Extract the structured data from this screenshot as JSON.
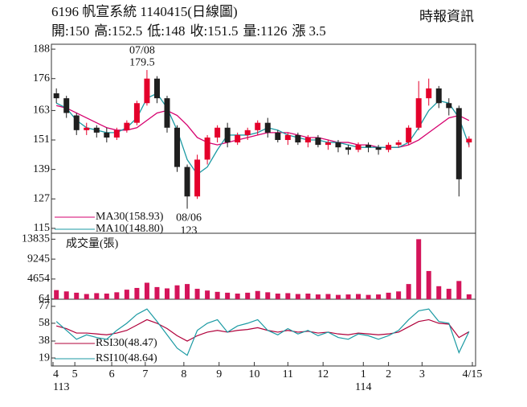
{
  "chart_data": [
    {
      "type": "candlestick",
      "title": "6196  帆宣系統 1140415(日線圖)",
      "source": "時報資訊",
      "stats": [
        {
          "label": "開:",
          "value": 150
        },
        {
          "label": "高:",
          "value": 152.5
        },
        {
          "label": "低:",
          "value": 148
        },
        {
          "label": "收:",
          "value": 151.5
        },
        {
          "label": "量:",
          "value": 1126
        },
        {
          "label": "漲",
          "value": 3.5
        }
      ],
      "x": [
        2,
        8,
        14,
        20,
        26,
        32,
        38,
        44,
        50,
        56,
        62,
        68,
        74,
        80,
        86,
        92,
        98,
        104,
        110,
        116,
        122,
        128,
        134,
        140,
        146,
        152,
        158,
        164,
        170,
        176,
        182,
        188,
        194,
        200,
        206,
        212,
        218,
        224,
        230,
        236,
        242,
        248
      ],
      "open": [
        170,
        168,
        161,
        155,
        156,
        154,
        152,
        155,
        158,
        166,
        176,
        168,
        156,
        140,
        128,
        143,
        152,
        156,
        150,
        153,
        155,
        158,
        154,
        151,
        153,
        150,
        152,
        149,
        150,
        148,
        147,
        149,
        148,
        147,
        149,
        150,
        156,
        168,
        172,
        166,
        164,
        150
      ],
      "high": [
        172,
        169,
        162,
        158,
        157,
        156,
        156,
        159,
        167,
        179.5,
        177,
        169,
        157,
        141,
        145,
        153,
        157,
        158,
        154,
        156,
        159,
        160,
        155,
        154,
        154,
        153,
        153,
        151,
        151,
        149,
        150,
        150,
        149,
        150,
        151,
        157,
        175,
        176,
        173,
        168,
        165,
        152.5
      ],
      "low": [
        166,
        160,
        153,
        153,
        152,
        150,
        151,
        154,
        157,
        165,
        166,
        154,
        138,
        123,
        127,
        141,
        150,
        148,
        149,
        151,
        153,
        152,
        150,
        149,
        149,
        148,
        148,
        147,
        146,
        145,
        146,
        146,
        145,
        146,
        148,
        149,
        155,
        165,
        164,
        161,
        128,
        148
      ],
      "close": [
        168,
        162,
        155,
        156,
        154,
        152,
        155,
        158,
        166,
        176,
        168,
        156,
        140,
        128,
        143,
        152,
        156,
        150,
        153,
        155,
        158,
        154,
        151,
        153,
        150,
        152,
        149,
        150,
        148,
        147,
        149,
        148,
        147,
        149,
        150,
        156,
        168,
        172,
        166,
        164,
        135,
        151.5
      ],
      "up_color": "#e4002b",
      "down_color": "#1f1f1f",
      "series": [
        {
          "name": "MA30(158.93)",
          "color": "#d6006e",
          "values": [
            165,
            164,
            162,
            160,
            158,
            156,
            155,
            155,
            156,
            159,
            162,
            163,
            161,
            157,
            152,
            150,
            149,
            150,
            151,
            152,
            153,
            154,
            154,
            154,
            153,
            152,
            152,
            151,
            150,
            150,
            149,
            149,
            148,
            148,
            148,
            149,
            151,
            154,
            157,
            160,
            161,
            158.93
          ]
        },
        {
          "name": "MA10(148.80)",
          "color": "#1b9aa3",
          "values": [
            166,
            164,
            159,
            156,
            155,
            154,
            154,
            156,
            160,
            168,
            170,
            164,
            155,
            143,
            137,
            140,
            147,
            153,
            153,
            153,
            154,
            156,
            155,
            153,
            152,
            151,
            151,
            150,
            150,
            149,
            148,
            148,
            148,
            148,
            148,
            150,
            156,
            163,
            167,
            166,
            160,
            148.8
          ]
        }
      ],
      "annotations": [
        {
          "date": "07/08",
          "value": 179.5
        },
        {
          "date": "08/06",
          "value": 123
        }
      ],
      "ylim": [
        113,
        190
      ],
      "yticks": [
        115,
        127,
        139,
        151,
        163,
        176,
        188
      ],
      "xlim": [
        0,
        250
      ],
      "xticks": [
        {
          "value": 0,
          "label": "4"
        },
        {
          "value": 13,
          "label": "5"
        },
        {
          "value": 35,
          "label": "6"
        },
        {
          "value": 55,
          "label": "7"
        },
        {
          "value": 78,
          "label": "8"
        },
        {
          "value": 99,
          "label": "9"
        },
        {
          "value": 120,
          "label": "10"
        },
        {
          "value": 140,
          "label": "11"
        },
        {
          "value": 161,
          "label": "12"
        },
        {
          "value": 185,
          "label": "1"
        },
        {
          "value": 200,
          "label": "2"
        },
        {
          "value": 220,
          "label": "3"
        },
        {
          "value": 250,
          "label": "4/15"
        }
      ],
      "year_labels": [
        {
          "value": 0,
          "label": "113"
        },
        {
          "value": 185,
          "label": "114"
        }
      ]
    },
    {
      "type": "bar",
      "label": "成交量(張)",
      "color": "#d4145a",
      "x": [
        2,
        8,
        14,
        20,
        26,
        32,
        38,
        44,
        50,
        56,
        62,
        68,
        74,
        80,
        86,
        92,
        98,
        104,
        110,
        116,
        122,
        128,
        134,
        140,
        146,
        152,
        158,
        164,
        170,
        176,
        182,
        188,
        194,
        200,
        206,
        212,
        218,
        224,
        230,
        236,
        242,
        248
      ],
      "values": [
        2100,
        1800,
        1500,
        1200,
        1400,
        1300,
        1600,
        2200,
        2600,
        3800,
        2800,
        2500,
        3200,
        3500,
        2400,
        2000,
        1700,
        1500,
        1300,
        1500,
        1900,
        1600,
        1300,
        1400,
        1200,
        1300,
        1100,
        1200,
        1000,
        1100,
        1200,
        1000,
        1100,
        1500,
        1800,
        3500,
        13835,
        6500,
        3000,
        2400,
        4200,
        1126
      ],
      "ylim": [
        0,
        15200
      ],
      "yticks": [
        64,
        4654,
        9245,
        13835
      ]
    },
    {
      "type": "line",
      "x": [
        2,
        8,
        14,
        20,
        26,
        32,
        38,
        44,
        50,
        56,
        62,
        68,
        74,
        80,
        86,
        92,
        98,
        104,
        110,
        116,
        122,
        128,
        134,
        140,
        146,
        152,
        158,
        164,
        170,
        176,
        182,
        188,
        194,
        200,
        206,
        212,
        218,
        224,
        230,
        236,
        242,
        248
      ],
      "series": [
        {
          "name": "RSI30(48.47)",
          "color": "#b0003a",
          "values": [
            55,
            52,
            47,
            47,
            46,
            45,
            47,
            50,
            56,
            62,
            58,
            52,
            44,
            38,
            44,
            48,
            50,
            48,
            50,
            51,
            53,
            50,
            48,
            50,
            48,
            49,
            47,
            48,
            46,
            45,
            47,
            46,
            45,
            46,
            48,
            54,
            60,
            62,
            58,
            57,
            42,
            48.47
          ]
        },
        {
          "name": "RSI10(48.64)",
          "color": "#1b9aa3",
          "values": [
            60,
            50,
            40,
            45,
            42,
            40,
            50,
            58,
            68,
            74,
            60,
            45,
            30,
            22,
            50,
            58,
            62,
            48,
            55,
            58,
            62,
            50,
            45,
            52,
            46,
            50,
            44,
            48,
            42,
            40,
            46,
            44,
            40,
            44,
            50,
            62,
            72,
            74,
            60,
            58,
            25,
            48.64
          ]
        }
      ],
      "ylim": [
        10,
        85
      ],
      "yticks": [
        19,
        38,
        58,
        77
      ]
    }
  ]
}
